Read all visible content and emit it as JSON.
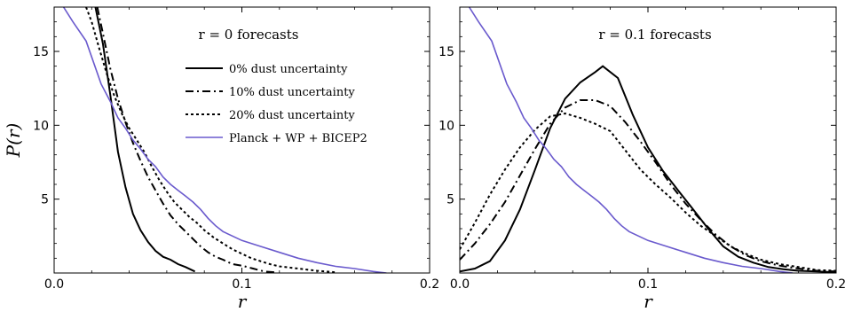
{
  "colors": {
    "black_series": "#000000",
    "planck_series": "#6a5acd"
  },
  "ylabel": "P(r)",
  "chart_data": [
    {
      "type": "line",
      "title": "r = 0 forecasts",
      "xlabel": "r",
      "ylabel": "P(r)",
      "xlim": [
        0.0,
        0.2
      ],
      "ylim": [
        0,
        18
      ],
      "xticks": [
        "0.0",
        "0.1",
        "0.2"
      ],
      "yticks": [
        "5",
        "10",
        "15"
      ],
      "legend_position": "upper-right",
      "series": [
        {
          "name": "0% dust uncertainty",
          "style": "solid",
          "color": "#000000",
          "points": [
            [
              0.022,
              18
            ],
            [
              0.026,
              15.5
            ],
            [
              0.03,
              12
            ],
            [
              0.034,
              8.2
            ],
            [
              0.038,
              5.8
            ],
            [
              0.042,
              4.0
            ],
            [
              0.046,
              2.9
            ],
            [
              0.05,
              2.1
            ],
            [
              0.054,
              1.5
            ],
            [
              0.058,
              1.1
            ],
            [
              0.062,
              0.9
            ],
            [
              0.066,
              0.6
            ],
            [
              0.07,
              0.4
            ],
            [
              0.075,
              0.1
            ]
          ]
        },
        {
          "name": "10% dust uncertainty",
          "style": "dashdot",
          "color": "#000000",
          "points": [
            [
              0.023,
              18
            ],
            [
              0.026,
              16.2
            ],
            [
              0.03,
              13.8
            ],
            [
              0.034,
              11.8
            ],
            [
              0.038,
              10.2
            ],
            [
              0.042,
              8.8
            ],
            [
              0.046,
              7.6
            ],
            [
              0.05,
              6.5
            ],
            [
              0.054,
              5.6
            ],
            [
              0.058,
              4.7
            ],
            [
              0.062,
              3.9
            ],
            [
              0.066,
              3.3
            ],
            [
              0.07,
              2.8
            ],
            [
              0.074,
              2.3
            ],
            [
              0.078,
              1.8
            ],
            [
              0.082,
              1.4
            ],
            [
              0.086,
              1.1
            ],
            [
              0.09,
              0.9
            ],
            [
              0.095,
              0.6
            ],
            [
              0.1,
              0.5
            ],
            [
              0.106,
              0.3
            ],
            [
              0.112,
              0.1
            ],
            [
              0.118,
              0.05
            ]
          ]
        },
        {
          "name": "20% dust uncertainty",
          "style": "dotted",
          "color": "#000000",
          "points": [
            [
              0.017,
              18
            ],
            [
              0.02,
              17
            ],
            [
              0.024,
              15.2
            ],
            [
              0.028,
              13.5
            ],
            [
              0.032,
              12.0
            ],
            [
              0.036,
              10.8
            ],
            [
              0.04,
              9.8
            ],
            [
              0.044,
              9.0
            ],
            [
              0.048,
              8.2
            ],
            [
              0.052,
              7.2
            ],
            [
              0.056,
              6.3
            ],
            [
              0.06,
              5.5
            ],
            [
              0.064,
              4.8
            ],
            [
              0.068,
              4.3
            ],
            [
              0.072,
              3.8
            ],
            [
              0.076,
              3.4
            ],
            [
              0.08,
              2.9
            ],
            [
              0.085,
              2.4
            ],
            [
              0.09,
              2.0
            ],
            [
              0.095,
              1.6
            ],
            [
              0.1,
              1.3
            ],
            [
              0.105,
              1.0
            ],
            [
              0.11,
              0.8
            ],
            [
              0.115,
              0.6
            ],
            [
              0.12,
              0.45
            ],
            [
              0.13,
              0.3
            ],
            [
              0.14,
              0.15
            ],
            [
              0.15,
              0.05
            ]
          ]
        },
        {
          "name": "Planck + WP + BICEP2",
          "style": "solid",
          "color": "#6a5acd",
          "points": [
            [
              0.005,
              18
            ],
            [
              0.01,
              17.0
            ],
            [
              0.017,
              15.7
            ],
            [
              0.025,
              12.8
            ],
            [
              0.03,
              11.6
            ],
            [
              0.034,
              10.5
            ],
            [
              0.038,
              9.8
            ],
            [
              0.042,
              9.0
            ],
            [
              0.046,
              8.4
            ],
            [
              0.05,
              7.7
            ],
            [
              0.054,
              7.2
            ],
            [
              0.058,
              6.5
            ],
            [
              0.062,
              6.0
            ],
            [
              0.066,
              5.6
            ],
            [
              0.07,
              5.2
            ],
            [
              0.074,
              4.8
            ],
            [
              0.078,
              4.3
            ],
            [
              0.082,
              3.7
            ],
            [
              0.086,
              3.2
            ],
            [
              0.09,
              2.8
            ],
            [
              0.095,
              2.5
            ],
            [
              0.1,
              2.2
            ],
            [
              0.11,
              1.8
            ],
            [
              0.12,
              1.4
            ],
            [
              0.13,
              1.0
            ],
            [
              0.14,
              0.7
            ],
            [
              0.15,
              0.45
            ],
            [
              0.16,
              0.3
            ],
            [
              0.17,
              0.1
            ],
            [
              0.177,
              0.0
            ]
          ]
        }
      ]
    },
    {
      "type": "line",
      "title": "r = 0.1 forecasts",
      "xlabel": "r",
      "ylabel": "",
      "xlim": [
        0.0,
        0.2
      ],
      "ylim": [
        0,
        18
      ],
      "xticks": [
        "0.0",
        "0.1",
        "0.2"
      ],
      "yticks": [
        "5",
        "10",
        "15"
      ],
      "series": [
        {
          "name": "0% dust uncertainty",
          "style": "solid",
          "color": "#000000",
          "points": [
            [
              0.0,
              0.1
            ],
            [
              0.008,
              0.3
            ],
            [
              0.016,
              0.8
            ],
            [
              0.024,
              2.2
            ],
            [
              0.032,
              4.3
            ],
            [
              0.04,
              7.0
            ],
            [
              0.048,
              9.8
            ],
            [
              0.056,
              11.8
            ],
            [
              0.064,
              12.9
            ],
            [
              0.072,
              13.6
            ],
            [
              0.076,
              14.0
            ],
            [
              0.084,
              13.2
            ],
            [
              0.092,
              10.7
            ],
            [
              0.1,
              8.5
            ],
            [
              0.108,
              6.9
            ],
            [
              0.116,
              5.6
            ],
            [
              0.124,
              4.3
            ],
            [
              0.132,
              3.0
            ],
            [
              0.14,
              1.8
            ],
            [
              0.148,
              1.1
            ],
            [
              0.156,
              0.7
            ],
            [
              0.164,
              0.4
            ],
            [
              0.172,
              0.25
            ],
            [
              0.18,
              0.15
            ],
            [
              0.19,
              0.1
            ],
            [
              0.2,
              0.05
            ]
          ]
        },
        {
          "name": "10% dust uncertainty",
          "style": "dashdot",
          "color": "#000000",
          "points": [
            [
              0.0,
              0.9
            ],
            [
              0.008,
              2.0
            ],
            [
              0.016,
              3.3
            ],
            [
              0.024,
              4.8
            ],
            [
              0.032,
              6.6
            ],
            [
              0.04,
              8.4
            ],
            [
              0.048,
              10.1
            ],
            [
              0.056,
              11.2
            ],
            [
              0.064,
              11.7
            ],
            [
              0.072,
              11.7
            ],
            [
              0.08,
              11.3
            ],
            [
              0.088,
              10.2
            ],
            [
              0.096,
              8.9
            ],
            [
              0.104,
              7.5
            ],
            [
              0.112,
              6.0
            ],
            [
              0.12,
              4.7
            ],
            [
              0.128,
              3.6
            ],
            [
              0.136,
              2.6
            ],
            [
              0.144,
              1.8
            ],
            [
              0.152,
              1.2
            ],
            [
              0.16,
              0.8
            ],
            [
              0.17,
              0.5
            ],
            [
              0.18,
              0.3
            ],
            [
              0.19,
              0.15
            ],
            [
              0.2,
              0.1
            ]
          ]
        },
        {
          "name": "20% dust uncertainty",
          "style": "dotted",
          "color": "#000000",
          "points": [
            [
              0.0,
              1.6
            ],
            [
              0.008,
              3.4
            ],
            [
              0.016,
              5.3
            ],
            [
              0.024,
              7.0
            ],
            [
              0.032,
              8.5
            ],
            [
              0.04,
              9.7
            ],
            [
              0.048,
              10.6
            ],
            [
              0.056,
              10.8
            ],
            [
              0.064,
              10.5
            ],
            [
              0.072,
              10.1
            ],
            [
              0.08,
              9.6
            ],
            [
              0.088,
              8.3
            ],
            [
              0.096,
              7.0
            ],
            [
              0.104,
              6.0
            ],
            [
              0.112,
              5.1
            ],
            [
              0.12,
              4.1
            ],
            [
              0.128,
              3.2
            ],
            [
              0.136,
              2.5
            ],
            [
              0.144,
              1.8
            ],
            [
              0.152,
              1.3
            ],
            [
              0.16,
              0.9
            ],
            [
              0.17,
              0.6
            ],
            [
              0.18,
              0.4
            ],
            [
              0.19,
              0.2
            ],
            [
              0.2,
              0.15
            ]
          ]
        },
        {
          "name": "Planck + WP + BICEP2",
          "style": "solid",
          "color": "#6a5acd",
          "points": [
            [
              0.005,
              18
            ],
            [
              0.01,
              17.0
            ],
            [
              0.017,
              15.7
            ],
            [
              0.025,
              12.8
            ],
            [
              0.03,
              11.6
            ],
            [
              0.034,
              10.5
            ],
            [
              0.038,
              9.8
            ],
            [
              0.042,
              9.0
            ],
            [
              0.046,
              8.4
            ],
            [
              0.05,
              7.7
            ],
            [
              0.054,
              7.2
            ],
            [
              0.058,
              6.5
            ],
            [
              0.062,
              6.0
            ],
            [
              0.066,
              5.6
            ],
            [
              0.07,
              5.2
            ],
            [
              0.074,
              4.8
            ],
            [
              0.078,
              4.3
            ],
            [
              0.082,
              3.7
            ],
            [
              0.086,
              3.2
            ],
            [
              0.09,
              2.8
            ],
            [
              0.095,
              2.5
            ],
            [
              0.1,
              2.2
            ],
            [
              0.11,
              1.8
            ],
            [
              0.12,
              1.4
            ],
            [
              0.13,
              1.0
            ],
            [
              0.14,
              0.7
            ],
            [
              0.15,
              0.45
            ],
            [
              0.16,
              0.3
            ],
            [
              0.17,
              0.1
            ],
            [
              0.177,
              0.0
            ]
          ]
        }
      ]
    }
  ]
}
